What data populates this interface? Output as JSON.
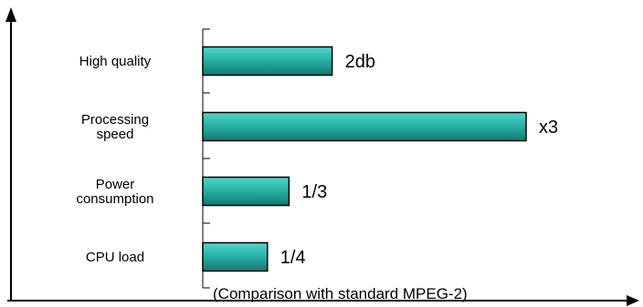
{
  "chart_data": {
    "type": "bar",
    "orientation": "horizontal",
    "categories": [
      [
        "High quality"
      ],
      [
        "Processing",
        "speed"
      ],
      [
        "Power",
        "consumption"
      ],
      [
        "CPU load"
      ]
    ],
    "value_labels": [
      "2db",
      "x3",
      "1/3",
      "1/4"
    ],
    "values": [
      0.3,
      0.75,
      0.2,
      0.15
    ],
    "note": "(Comparison with standard MPEG-2)",
    "axes": {
      "x_arrow": true,
      "y_arrow": true,
      "grid": false
    },
    "colors": {
      "bar_fill_light": "#52d6cc",
      "bar_fill_mid": "#2ab3a8",
      "bar_fill_dark": "#0f7a72",
      "bar_stroke": "#000000"
    }
  }
}
